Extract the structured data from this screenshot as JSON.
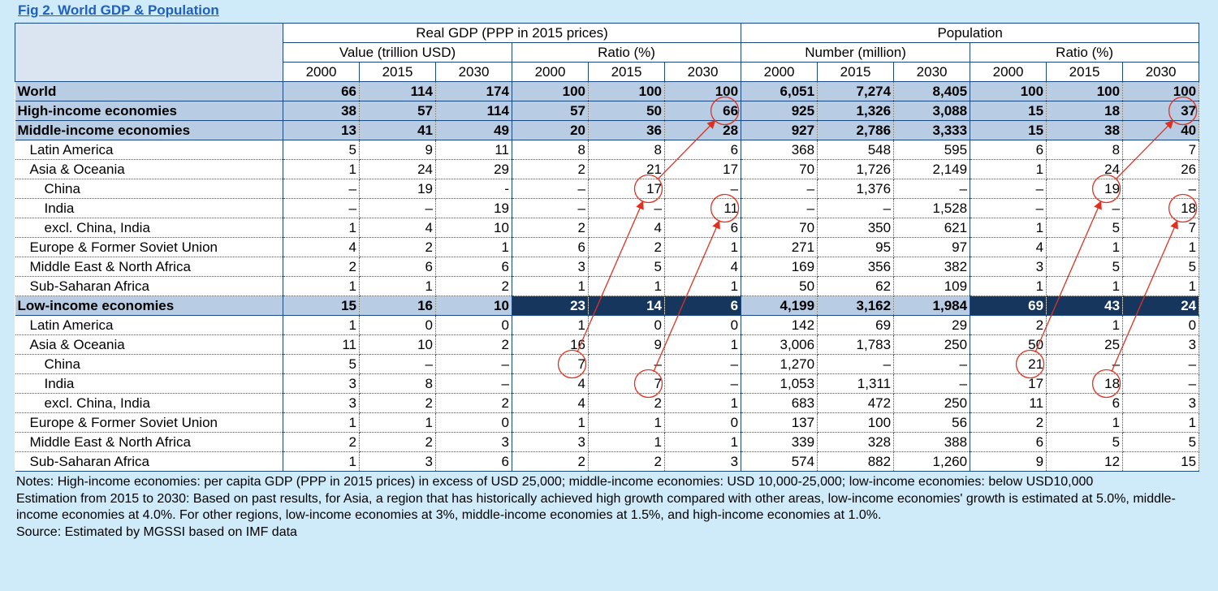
{
  "title": "Fig 2.  World GDP & Population",
  "chart_data": {
    "type": "table",
    "group_headers": [
      "Real GDP (PPP in 2015 prices)",
      "Population"
    ],
    "sub_headers": [
      "Value (trillion USD)",
      "Ratio (%)",
      "Number (million)",
      "Ratio (%)"
    ],
    "years": [
      "2000",
      "2015",
      "2030",
      "2000",
      "2015",
      "2030",
      "2000",
      "2015",
      "2030",
      "2000",
      "2015",
      "2030"
    ],
    "rows": [
      {
        "label": "World",
        "level": 0,
        "values": [
          "66",
          "114",
          "174",
          "100",
          "100",
          "100",
          "6,051",
          "7,274",
          "8,405",
          "100",
          "100",
          "100"
        ]
      },
      {
        "label": "High-income economies",
        "level": 0,
        "values": [
          "38",
          "57",
          "114",
          "57",
          "50",
          "66",
          "925",
          "1,326",
          "3,088",
          "15",
          "18",
          "37"
        ]
      },
      {
        "label": "Middle-income economies",
        "level": 0,
        "values": [
          "13",
          "41",
          "49",
          "20",
          "36",
          "28",
          "927",
          "2,786",
          "3,333",
          "15",
          "38",
          "40"
        ]
      },
      {
        "label": "Latin America",
        "level": 1,
        "values": [
          "5",
          "9",
          "11",
          "8",
          "8",
          "6",
          "368",
          "548",
          "595",
          "6",
          "8",
          "7"
        ]
      },
      {
        "label": "Asia & Oceania",
        "level": 1,
        "values": [
          "1",
          "24",
          "29",
          "2",
          "21",
          "17",
          "70",
          "1,726",
          "2,149",
          "1",
          "24",
          "26"
        ]
      },
      {
        "label": "China",
        "level": 2,
        "values": [
          "–",
          "19",
          "-",
          "–",
          "17",
          "–",
          "–",
          "1,376",
          "–",
          "–",
          "19",
          "–"
        ]
      },
      {
        "label": "India",
        "level": 2,
        "values": [
          "–",
          "–",
          "19",
          "–",
          "–",
          "11",
          "–",
          "–",
          "1,528",
          "–",
          "–",
          "18"
        ]
      },
      {
        "label": "excl. China, India",
        "level": 2,
        "values": [
          "1",
          "4",
          "10",
          "2",
          "4",
          "6",
          "70",
          "350",
          "621",
          "1",
          "5",
          "7"
        ]
      },
      {
        "label": "Europe & Former Soviet Union",
        "level": 1,
        "values": [
          "4",
          "2",
          "1",
          "6",
          "2",
          "1",
          "271",
          "95",
          "97",
          "4",
          "1",
          "1"
        ]
      },
      {
        "label": "Middle East & North Africa",
        "level": 1,
        "values": [
          "2",
          "6",
          "6",
          "3",
          "5",
          "4",
          "169",
          "356",
          "382",
          "3",
          "5",
          "5"
        ]
      },
      {
        "label": "Sub-Saharan Africa",
        "level": 1,
        "values": [
          "1",
          "1",
          "2",
          "1",
          "1",
          "1",
          "50",
          "62",
          "109",
          "1",
          "1",
          "1"
        ]
      },
      {
        "label": "Low-income economies",
        "level": 0,
        "values": [
          "15",
          "16",
          "10",
          "23",
          "14",
          "6",
          "4,199",
          "3,162",
          "1,984",
          "69",
          "43",
          "24"
        ]
      },
      {
        "label": "Latin America",
        "level": 1,
        "values": [
          "1",
          "0",
          "0",
          "1",
          "0",
          "0",
          "142",
          "69",
          "29",
          "2",
          "1",
          "0"
        ]
      },
      {
        "label": "Asia & Oceania",
        "level": 1,
        "values": [
          "11",
          "10",
          "2",
          "16",
          "9",
          "1",
          "3,006",
          "1,783",
          "250",
          "50",
          "25",
          "3"
        ]
      },
      {
        "label": "China",
        "level": 2,
        "values": [
          "5",
          "–",
          "–",
          "7",
          "–",
          "–",
          "1,270",
          "–",
          "–",
          "21",
          "–",
          "–"
        ]
      },
      {
        "label": "India",
        "level": 2,
        "values": [
          "3",
          "8",
          "–",
          "4",
          "7",
          "–",
          "1,053",
          "1,311",
          "–",
          "17",
          "18",
          "–"
        ]
      },
      {
        "label": "excl. China, India",
        "level": 2,
        "values": [
          "3",
          "2",
          "2",
          "4",
          "2",
          "1",
          "683",
          "472",
          "250",
          "11",
          "6",
          "3"
        ]
      },
      {
        "label": "Europe & Former Soviet Union",
        "level": 1,
        "values": [
          "1",
          "1",
          "0",
          "1",
          "1",
          "0",
          "137",
          "100",
          "56",
          "2",
          "1",
          "1"
        ]
      },
      {
        "label": "Middle East & North Africa",
        "level": 1,
        "values": [
          "2",
          "2",
          "3",
          "3",
          "1",
          "1",
          "339",
          "328",
          "388",
          "6",
          "5",
          "5"
        ]
      },
      {
        "label": "Sub-Saharan Africa",
        "level": 1,
        "values": [
          "1",
          "3",
          "6",
          "2",
          "2",
          "3",
          "574",
          "882",
          "1,260",
          "9",
          "12",
          "15"
        ]
      }
    ],
    "circled_cells": [
      [
        1,
        5
      ],
      [
        1,
        11
      ],
      [
        5,
        4
      ],
      [
        5,
        10
      ],
      [
        6,
        5
      ],
      [
        6,
        11
      ],
      [
        14,
        3
      ],
      [
        14,
        9
      ],
      [
        15,
        4
      ],
      [
        15,
        10
      ]
    ],
    "arrows": [
      [
        14,
        3,
        5,
        4
      ],
      [
        5,
        4,
        1,
        5
      ],
      [
        15,
        4,
        6,
        5
      ],
      [
        14,
        9,
        5,
        10
      ],
      [
        5,
        10,
        1,
        11
      ],
      [
        15,
        10,
        6,
        11
      ]
    ],
    "highlight_color": "#e03020"
  },
  "notes": [
    "Notes: High-income economies: per capita GDP (PPP in 2015 prices) in excess of USD 25,000; middle-income economies: USD 10,000-25,000; low-income economies: below USD10,000",
    "Estimation from 2015 to 2030: Based on past results, for Asia, a region that has historically achieved high growth compared with other areas, low-income economies' growth is estimated at 5.0%, middle-income economies at 4.0%. For other regions, low-income economies at 3%, middle-income economies at 1.5%, and high-income economies at 1.0%.",
    "Source: Estimated by MGSSI based on IMF data"
  ]
}
